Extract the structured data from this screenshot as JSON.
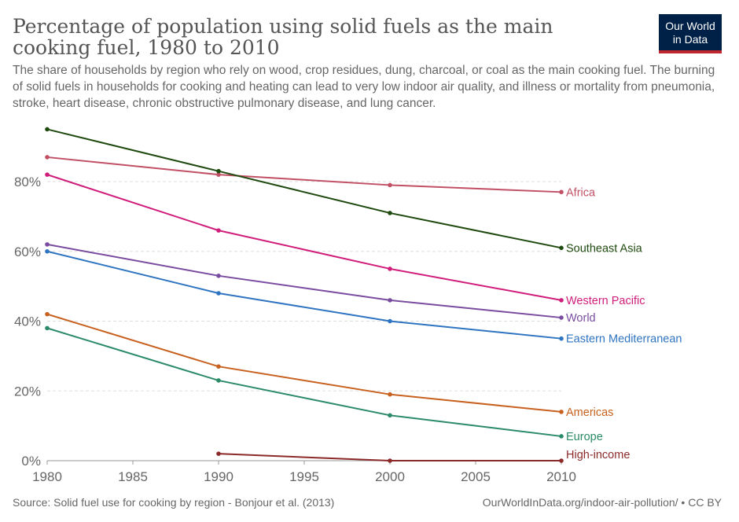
{
  "header": {
    "title": "Percentage of population using solid fuels as the main cooking fuel, 1980 to 2010",
    "subtitle": "The share of households by region who rely on wood, crop residues, dung, charcoal, or coal as the main cooking fuel. The burning of solid fuels in households for cooking and heating can lead to very low indoor air quality, and illness or mortality from pneumonia, stroke, heart disease, chronic obstructive pulmonary disease, and lung cancer."
  },
  "logo": {
    "line1": "Our World",
    "line2": "in Data",
    "bg_color": "#002147",
    "accent_color": "#c0262d"
  },
  "footer": {
    "source": "Source: Solid fuel use for cooking by region - Bonjour et al. (2013)",
    "url": "OurWorldInData.org/indoor-air-pollution/ • CC BY"
  },
  "chart_data": {
    "type": "line",
    "title": "Percentage of population using solid fuels as the main cooking fuel, 1980 to 2010",
    "xlabel": "",
    "ylabel": "",
    "xlim": [
      1980,
      2010
    ],
    "ylim": [
      0,
      96
    ],
    "x_ticks": [
      1980,
      1985,
      1990,
      1995,
      2000,
      2005,
      2010
    ],
    "y_ticks": [
      0,
      20,
      40,
      60,
      80
    ],
    "y_tick_labels": [
      "0%",
      "20%",
      "40%",
      "60%",
      "80%"
    ],
    "grid": "horizontal dashed",
    "legend": "labels at right end of lines",
    "series": [
      {
        "name": "Africa",
        "color": "#c15065",
        "x": [
          1980,
          1990,
          2000,
          2010
        ],
        "values": [
          87,
          82,
          79,
          77
        ]
      },
      {
        "name": "Southeast Asia",
        "color": "#1f4a0f",
        "x": [
          1980,
          1990,
          2000,
          2010
        ],
        "values": [
          95,
          83,
          71,
          61
        ]
      },
      {
        "name": "Western Pacific",
        "color": "#d01c7a",
        "x": [
          1980,
          1990,
          2000,
          2010
        ],
        "values": [
          82,
          66,
          55,
          46
        ]
      },
      {
        "name": "World",
        "color": "#7a4ca0",
        "x": [
          1980,
          1990,
          2000,
          2010
        ],
        "values": [
          62,
          53,
          46,
          41
        ]
      },
      {
        "name": "Eastern Mediterranean",
        "color": "#2f74c0",
        "x": [
          1980,
          1990,
          2000,
          2010
        ],
        "values": [
          60,
          48,
          40,
          35
        ]
      },
      {
        "name": "Americas",
        "color": "#c8611f",
        "x": [
          1980,
          1990,
          2000,
          2010
        ],
        "values": [
          42,
          27,
          19,
          14
        ]
      },
      {
        "name": "Europe",
        "color": "#2b8a67",
        "x": [
          1980,
          1990,
          2000,
          2010
        ],
        "values": [
          38,
          23,
          13,
          7
        ]
      },
      {
        "name": "High-income",
        "color": "#8c2a2a",
        "x": [
          1990,
          2000,
          2010
        ],
        "values": [
          2,
          0,
          0
        ]
      }
    ]
  }
}
